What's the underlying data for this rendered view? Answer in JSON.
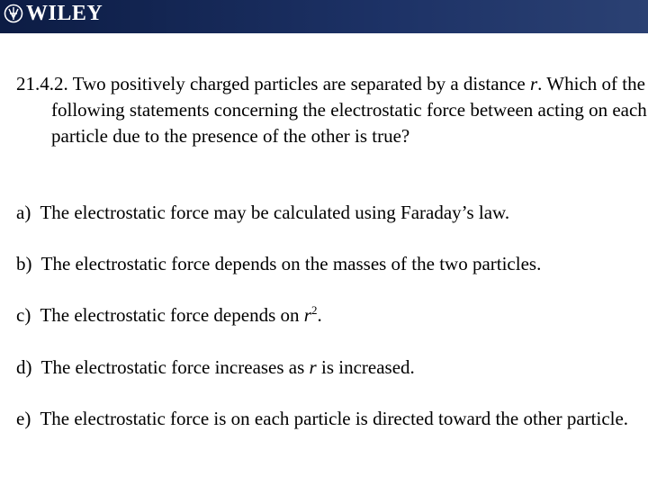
{
  "header": {
    "logo": "WILEY"
  },
  "question": {
    "number": "21.4.2.",
    "parts": [
      "Two positively charged particles are separated by a distance ",
      "r",
      ". Which of the following statements concerning the electrostatic force between acting on each particle due to the presence of the other is true?"
    ]
  },
  "options": [
    {
      "letter": "a)",
      "parts": [
        "The electrostatic force may be calculated using Faraday’s law."
      ]
    },
    {
      "letter": "b)",
      "parts": [
        "The electrostatic force depends on the masses of the two particles."
      ]
    },
    {
      "letter": "c)",
      "parts": [
        "The electrostatic force depends on ",
        "r",
        "2",
        "."
      ]
    },
    {
      "letter": "d)",
      "parts": [
        "The electrostatic force increases as ",
        "r",
        " is increased."
      ]
    },
    {
      "letter": "e)",
      "parts": [
        "The electrostatic force is on each particle is directed toward the other particle."
      ]
    }
  ]
}
